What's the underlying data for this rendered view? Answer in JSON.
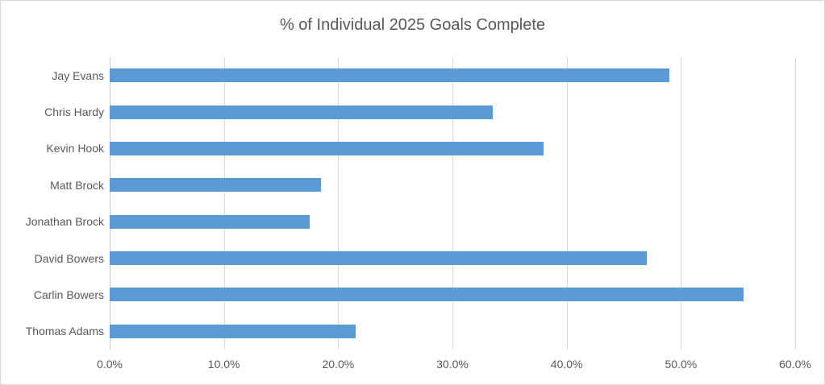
{
  "chart_data": {
    "type": "bar",
    "orientation": "horizontal",
    "title": "% of Individual 2025 Goals Complete",
    "categories": [
      "Jay Evans",
      "Chris Hardy",
      "Kevin Hook",
      "Matt Brock",
      "Jonathan Brock",
      "David Bowers",
      "Carlin Bowers",
      "Thomas Adams"
    ],
    "values": [
      49.0,
      33.5,
      38.0,
      18.5,
      17.5,
      47.0,
      55.5,
      21.5
    ],
    "value_unit": "%",
    "xlabel": "",
    "ylabel": "",
    "xlim": [
      0,
      60
    ],
    "x_tick_values": [
      0,
      10,
      20,
      30,
      40,
      50,
      60
    ],
    "x_tick_labels": [
      "0.0%",
      "10.0%",
      "20.0%",
      "30.0%",
      "40.0%",
      "50.0%",
      "60.0%"
    ],
    "grid": true,
    "legend": false,
    "colors": {
      "bar": "#5b9bd5",
      "gridline": "#d9d9d9",
      "axis_line": "#c6c6c6",
      "text": "#595959",
      "background": "#ffffff",
      "border": "#d7d7d7"
    }
  }
}
